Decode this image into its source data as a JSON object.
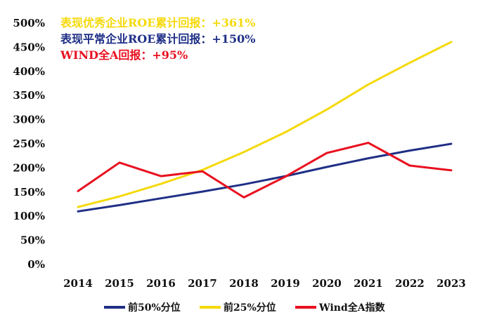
{
  "chart_data": {
    "type": "line",
    "categories": [
      "2014",
      "2015",
      "2016",
      "2017",
      "2018",
      "2019",
      "2020",
      "2021",
      "2022",
      "2023"
    ],
    "ylim": [
      0,
      500
    ],
    "yticks": [
      0,
      50,
      100,
      150,
      200,
      250,
      300,
      350,
      400,
      450,
      500
    ],
    "ytick_labels": [
      "0%",
      "50%",
      "100%",
      "150%",
      "200%",
      "250%",
      "300%",
      "350%",
      "400%",
      "450%",
      "500%"
    ],
    "grid": false,
    "legend_position": "bottom",
    "series": [
      {
        "name": "前50%分位",
        "color": "#1f2f86",
        "values": [
          110,
          123,
          137,
          151,
          166,
          183,
          202,
          220,
          236,
          250
        ]
      },
      {
        "name": "前25%分位",
        "color": "#f5d90a",
        "values": [
          119,
          141,
          167,
          196,
          233,
          274,
          321,
          373,
          418,
          461
        ]
      },
      {
        "name": "Wind全A指数",
        "color": "#e8101f",
        "values": [
          152,
          211,
          183,
          193,
          139,
          182,
          231,
          252,
          205,
          195
        ]
      }
    ],
    "annotations": [
      {
        "text": "表现优秀企业ROE累计回报：+361%",
        "color": "#f5d90a"
      },
      {
        "text": "表现平常企业ROE累计回报：+150%",
        "color": "#1f2f86"
      },
      {
        "text": "WIND全A回报：+95%",
        "color": "#e8101f"
      }
    ]
  }
}
